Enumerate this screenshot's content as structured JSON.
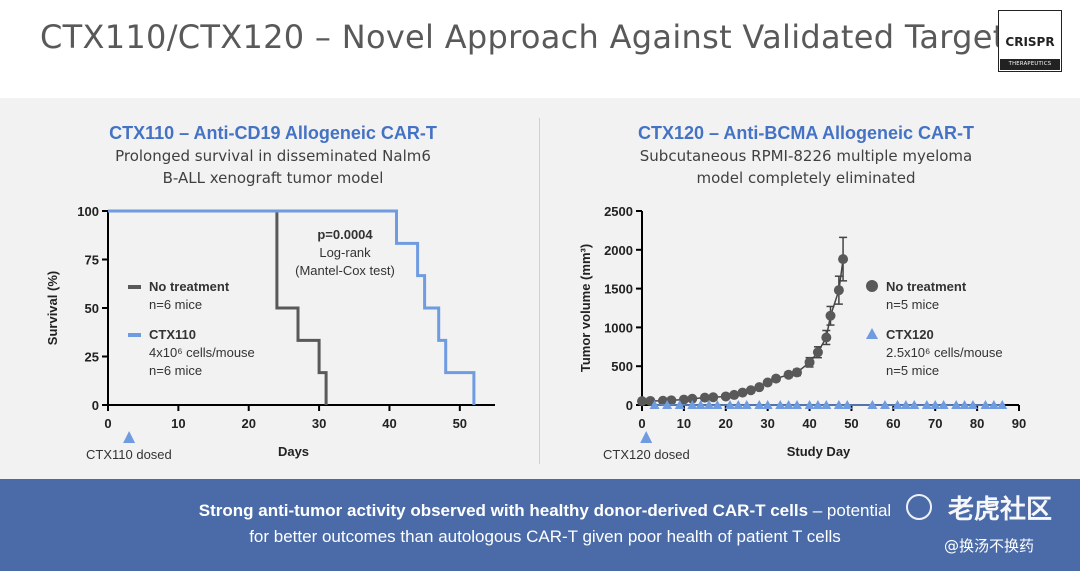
{
  "slide": {
    "title": "CTX110/CTX120 – Novel Approach Against Validated Targets",
    "logo_main": "CRISPR",
    "logo_sub": "THERAPEUTICS"
  },
  "left_panel": {
    "title": "CTX110 – Anti-CD19 Allogeneic CAR-T",
    "subtitle_line1": "Prolonged survival in disseminated Nalm6",
    "subtitle_line2": "B-ALL xenograft tumor model"
  },
  "right_panel": {
    "title": "CTX120 – Anti-BCMA Allogeneic CAR-T",
    "subtitle_line1": "Subcutaneous RPMI-8226 multiple myeloma",
    "subtitle_line2": "model completely eliminated"
  },
  "banner": {
    "line1_bold": "Strong anti-tumor activity observed with healthy donor-derived CAR-T cells",
    "line1_rest": " – potential",
    "line2": "for better outcomes than autologous CAR-T given poor health of patient T cells"
  },
  "watermark": {
    "main": "老虎社区",
    "sub": "@换汤不换药"
  },
  "colors": {
    "accent_blue": "#4472c4",
    "series_gray": "#595959",
    "series_blue": "#6f9be0",
    "banner": "#4a6ba8"
  },
  "chart_data": [
    {
      "type": "line",
      "subtype": "kaplan-meier",
      "xlabel": "Days",
      "ylabel": "Survival (%)",
      "xlim": [
        0,
        55
      ],
      "ylim": [
        0,
        100
      ],
      "xticks": [
        0,
        10,
        20,
        30,
        40,
        50
      ],
      "yticks": [
        0,
        25,
        50,
        75,
        100
      ],
      "series": [
        {
          "name": "No treatment",
          "detail": [
            "n=6 mice"
          ],
          "color": "#595959",
          "steps": [
            [
              0,
              100
            ],
            [
              24,
              100
            ],
            [
              24,
              50
            ],
            [
              27,
              50
            ],
            [
              27,
              33.3
            ],
            [
              30,
              33.3
            ],
            [
              30,
              16.7
            ],
            [
              31,
              16.7
            ],
            [
              31,
              0
            ]
          ]
        },
        {
          "name": "CTX110",
          "detail": [
            "4x10⁶ cells/mouse",
            "n=6 mice"
          ],
          "color": "#6f9be0",
          "steps": [
            [
              0,
              100
            ],
            [
              41,
              100
            ],
            [
              41,
              83.3
            ],
            [
              44,
              83.3
            ],
            [
              44,
              66.7
            ],
            [
              45,
              66.7
            ],
            [
              45,
              50
            ],
            [
              47,
              50
            ],
            [
              47,
              33.3
            ],
            [
              48,
              33.3
            ],
            [
              48,
              16.7
            ],
            [
              52,
              16.7
            ],
            [
              52,
              0
            ]
          ]
        }
      ],
      "annotation": [
        "p=0.0004",
        "Log-rank",
        "(Mantel-Cox test)"
      ],
      "marker": {
        "x": 3,
        "label": "CTX110 dosed"
      }
    },
    {
      "type": "scatter",
      "xlabel": "Study Day",
      "ylabel": "Tumor volume (mm³)",
      "xlim": [
        0,
        90
      ],
      "ylim": [
        0,
        2500
      ],
      "xticks": [
        0,
        10,
        20,
        30,
        40,
        50,
        60,
        70,
        80,
        90
      ],
      "yticks": [
        0,
        500,
        1000,
        1500,
        2000,
        2500
      ],
      "series": [
        {
          "name": "No treatment",
          "detail": [
            "n=5 mice"
          ],
          "color": "#595959",
          "marker": "circle",
          "x": [
            0,
            2,
            5,
            7,
            10,
            12,
            15,
            17,
            20,
            22,
            24,
            26,
            28,
            30,
            32,
            35,
            37,
            40,
            42,
            44,
            45,
            47,
            48
          ],
          "y": [
            50,
            52,
            55,
            60,
            70,
            80,
            95,
            100,
            110,
            130,
            160,
            190,
            230,
            290,
            340,
            390,
            420,
            550,
            680,
            870,
            1150,
            1480,
            1880
          ],
          "err": [
            0,
            0,
            0,
            0,
            0,
            0,
            0,
            0,
            0,
            0,
            0,
            0,
            0,
            20,
            25,
            35,
            40,
            60,
            70,
            90,
            120,
            180,
            280
          ]
        },
        {
          "name": "CTX120",
          "detail": [
            "2.5x10⁶ cells/mouse",
            "n=5 mice"
          ],
          "color": "#6f9be0",
          "marker": "triangle",
          "x": [
            3,
            6,
            9,
            12,
            14,
            16,
            18,
            21,
            23,
            25,
            28,
            30,
            33,
            35,
            37,
            40,
            42,
            44,
            47,
            49,
            55,
            58,
            61,
            63,
            65,
            68,
            70,
            72,
            75,
            77,
            79,
            82,
            84,
            86
          ],
          "y": [
            0,
            0,
            0,
            0,
            0,
            0,
            0,
            0,
            0,
            0,
            0,
            0,
            0,
            0,
            0,
            0,
            0,
            0,
            0,
            0,
            0,
            0,
            0,
            0,
            0,
            0,
            0,
            0,
            0,
            0,
            0,
            0,
            0,
            0
          ]
        }
      ],
      "marker": {
        "x": 1,
        "label": "CTX120 dosed"
      }
    }
  ]
}
